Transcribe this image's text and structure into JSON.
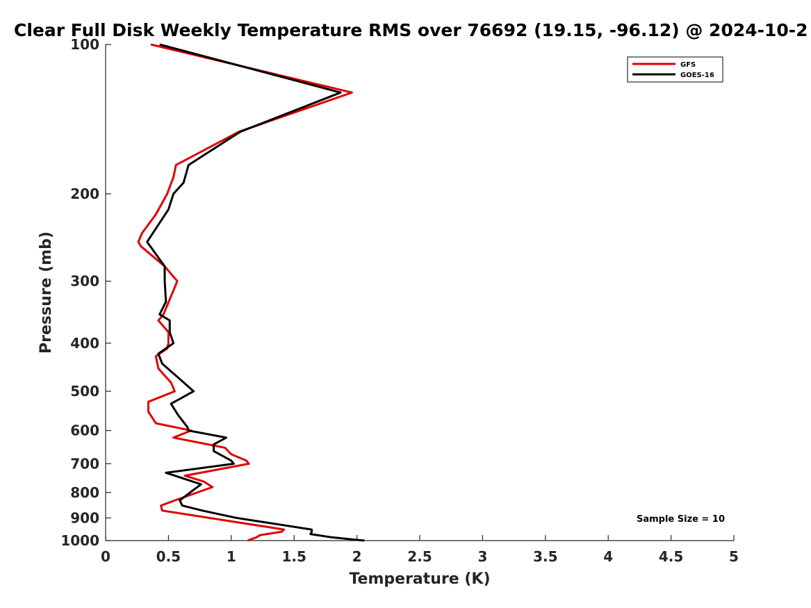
{
  "chart_data": {
    "type": "line",
    "title": "Clear Full Disk Weekly Temperature RMS over 76692 (19.15, -96.12) @ 2024-10-2",
    "xlabel": "Temperature (K)",
    "ylabel": "Pressure (mb)",
    "xlim": [
      0,
      5
    ],
    "ylim": [
      100,
      1000
    ],
    "yscale": "log",
    "y_reversed": true,
    "x_ticks": [
      0,
      0.5,
      1,
      1.5,
      2,
      2.5,
      3,
      3.5,
      4,
      4.5,
      5
    ],
    "x_tick_labels": [
      "0",
      "0.5",
      "1",
      "1.5",
      "2",
      "2.5",
      "3",
      "3.5",
      "4",
      "4.5",
      "5"
    ],
    "y_ticks": [
      100,
      200,
      300,
      400,
      500,
      600,
      700,
      800,
      900,
      1000
    ],
    "y_tick_labels": [
      "100",
      "200",
      "300",
      "400",
      "500",
      "600",
      "700",
      "800",
      "900",
      "1000"
    ],
    "legend_position": "top-right",
    "annotation": "Sample Size = 10",
    "series": [
      {
        "name": "GFS",
        "color": "#e00000",
        "points": [
          [
            0.36,
            100
          ],
          [
            1.96,
            125
          ],
          [
            1.06,
            150
          ],
          [
            0.56,
            175
          ],
          [
            0.54,
            185
          ],
          [
            0.49,
            200
          ],
          [
            0.4,
            220
          ],
          [
            0.29,
            240
          ],
          [
            0.26,
            250
          ],
          [
            0.28,
            255
          ],
          [
            0.47,
            280
          ],
          [
            0.57,
            300
          ],
          [
            0.46,
            350
          ],
          [
            0.42,
            360
          ],
          [
            0.5,
            380
          ],
          [
            0.5,
            400
          ],
          [
            0.49,
            410
          ],
          [
            0.4,
            425
          ],
          [
            0.42,
            450
          ],
          [
            0.52,
            480
          ],
          [
            0.55,
            500
          ],
          [
            0.34,
            525
          ],
          [
            0.34,
            550
          ],
          [
            0.4,
            580
          ],
          [
            0.68,
            600
          ],
          [
            0.54,
            620
          ],
          [
            0.95,
            650
          ],
          [
            1.0,
            670
          ],
          [
            1.12,
            690
          ],
          [
            1.14,
            700
          ],
          [
            0.63,
            740
          ],
          [
            0.78,
            760
          ],
          [
            0.85,
            780
          ],
          [
            0.55,
            830
          ],
          [
            0.44,
            850
          ],
          [
            0.45,
            870
          ],
          [
            1.42,
            950
          ],
          [
            1.4,
            960
          ],
          [
            1.23,
            975
          ],
          [
            1.2,
            985
          ],
          [
            1.13,
            1000
          ]
        ]
      },
      {
        "name": "GOES-16",
        "color": "#000000",
        "points": [
          [
            0.43,
            100
          ],
          [
            1.87,
            125
          ],
          [
            1.07,
            150
          ],
          [
            0.66,
            175
          ],
          [
            0.62,
            190
          ],
          [
            0.54,
            200
          ],
          [
            0.5,
            215
          ],
          [
            0.4,
            235
          ],
          [
            0.33,
            250
          ],
          [
            0.47,
            280
          ],
          [
            0.47,
            300
          ],
          [
            0.48,
            330
          ],
          [
            0.43,
            350
          ],
          [
            0.51,
            360
          ],
          [
            0.51,
            380
          ],
          [
            0.54,
            400
          ],
          [
            0.42,
            420
          ],
          [
            0.45,
            440
          ],
          [
            0.58,
            470
          ],
          [
            0.7,
            500
          ],
          [
            0.52,
            530
          ],
          [
            0.58,
            560
          ],
          [
            0.65,
            590
          ],
          [
            0.66,
            600
          ],
          [
            0.96,
            620
          ],
          [
            0.86,
            640
          ],
          [
            0.86,
            660
          ],
          [
            1.0,
            690
          ],
          [
            1.02,
            700
          ],
          [
            0.48,
            730
          ],
          [
            0.76,
            770
          ],
          [
            0.7,
            790
          ],
          [
            0.59,
            830
          ],
          [
            0.61,
            850
          ],
          [
            0.77,
            870
          ],
          [
            1.04,
            900
          ],
          [
            1.64,
            950
          ],
          [
            1.64,
            960
          ],
          [
            1.63,
            970
          ],
          [
            1.8,
            985
          ],
          [
            2.06,
            1000
          ]
        ]
      }
    ]
  }
}
